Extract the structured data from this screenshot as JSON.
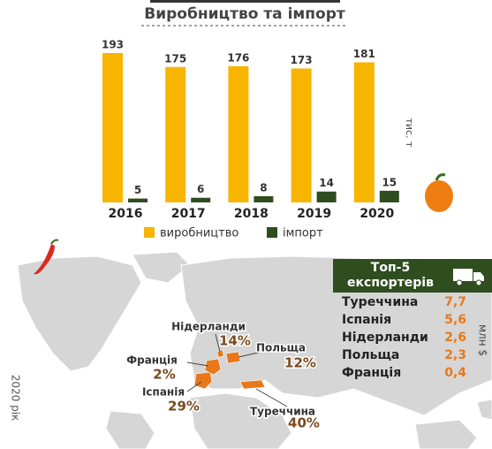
{
  "chart_data": {
    "type": "bar",
    "title": "Виробництво та імпорт",
    "categories": [
      "2016",
      "2017",
      "2018",
      "2019",
      "2020"
    ],
    "series": [
      {
        "name": "виробництво",
        "color": "#f8b500",
        "values": [
          193,
          175,
          176,
          173,
          181
        ]
      },
      {
        "name": "імпорт",
        "color": "#2f4d1f",
        "values": [
          5,
          6,
          8,
          14,
          15
        ]
      }
    ],
    "unit": "тис. т"
  },
  "map": {
    "caption": "2020 рік",
    "countries": [
      {
        "name": "Нідерланди",
        "share": "14%"
      },
      {
        "name": "Польща",
        "share": "12%"
      },
      {
        "name": "Франція",
        "share": "2%"
      },
      {
        "name": "Іспанія",
        "share": "29%"
      },
      {
        "name": "Туреччина",
        "share": "40%"
      }
    ]
  },
  "exporters": {
    "title": "Топ-5 експортерів",
    "unit": "млн $",
    "rows": [
      [
        "Туреччина",
        "7,7"
      ],
      [
        "Іспанія",
        "5,6"
      ],
      [
        "Нідерланди",
        "2,6"
      ],
      [
        "Польща",
        "2,3"
      ],
      [
        "Франція",
        "0,4"
      ]
    ]
  }
}
